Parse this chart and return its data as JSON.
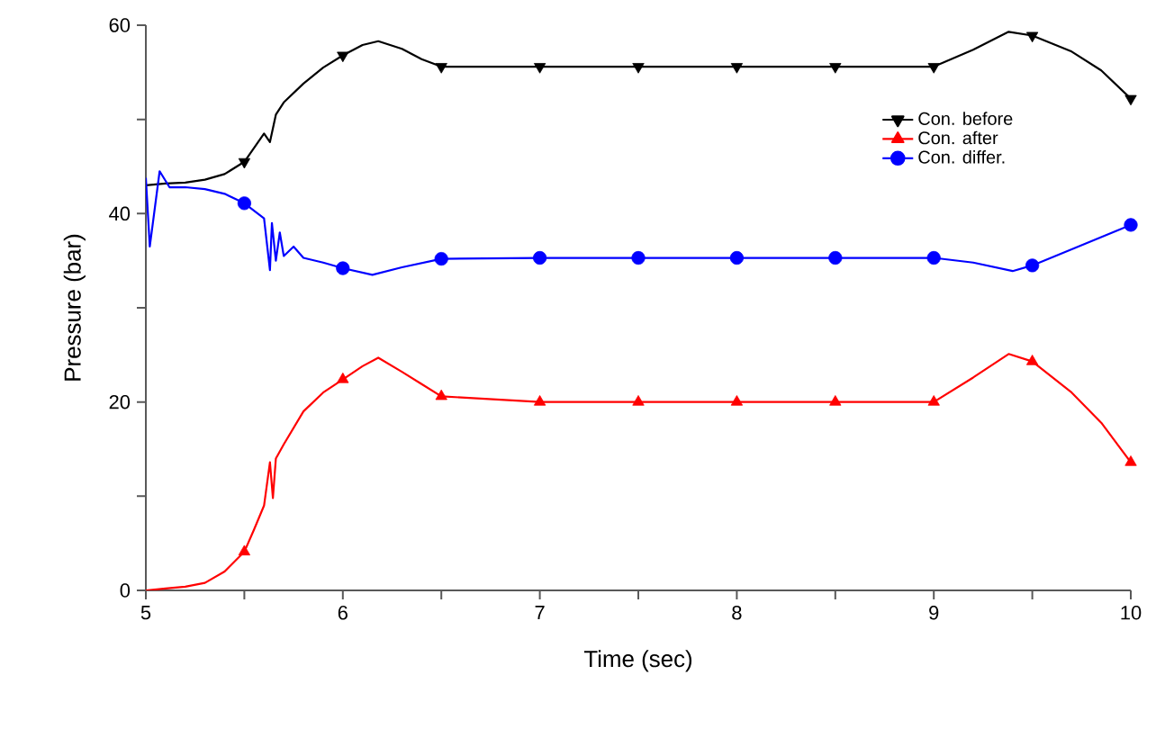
{
  "chart_data": {
    "type": "line",
    "xlabel": "Time (sec)",
    "ylabel": "Pressure (bar)",
    "xlim": [
      5,
      10
    ],
    "ylim": [
      0,
      60
    ],
    "xticks": [
      5,
      {
        "value": 5.5,
        "label": null
      },
      6,
      {
        "value": 6.5,
        "label": null
      },
      7,
      {
        "value": 7.5,
        "label": null
      },
      8,
      {
        "value": 8.5,
        "label": null
      },
      9,
      {
        "value": 9.5,
        "label": null
      },
      10
    ],
    "yticks": [
      0,
      {
        "value": 10,
        "label": null
      },
      20,
      {
        "value": 30,
        "label": null
      },
      40,
      {
        "value": 50,
        "label": null
      },
      60
    ],
    "grid": false,
    "legend": "top right",
    "series": [
      {
        "name": "Con. before",
        "color": "#000000",
        "x": [
          5,
          5.1,
          5.2,
          5.3,
          5.4,
          5.5,
          5.55,
          5.6,
          5.63,
          5.66,
          5.7,
          5.8,
          5.9,
          6.0,
          6.1,
          6.18,
          6.3,
          6.4,
          6.5,
          7,
          7.5,
          8,
          8.5,
          9,
          9.2,
          9.38,
          9.5,
          9.7,
          9.85,
          10
        ],
        "values": [
          43,
          43.2,
          43.3,
          43.6,
          44.2,
          45.5,
          47,
          48.5,
          47.6,
          50.5,
          51.8,
          53.8,
          55.5,
          56.8,
          57.9,
          58.3,
          57.5,
          56.4,
          55.6,
          55.6,
          55.6,
          55.6,
          55.6,
          55.6,
          57.4,
          59.3,
          58.9,
          57.2,
          55.2,
          52.2
        ]
      },
      {
        "name": "Con. after",
        "color": "#ff0000",
        "x": [
          5,
          5.1,
          5.2,
          5.3,
          5.4,
          5.5,
          5.55,
          5.6,
          5.63,
          5.645,
          5.66,
          5.7,
          5.8,
          5.9,
          6.0,
          6.1,
          6.18,
          6.3,
          6.4,
          6.5,
          7,
          7.5,
          8,
          8.5,
          9,
          9.2,
          9.38,
          9.5,
          9.7,
          9.85,
          10
        ],
        "values": [
          0,
          0.2,
          0.4,
          0.8,
          2,
          4.1,
          6.5,
          9,
          13.6,
          9.8,
          14,
          15.5,
          19,
          21,
          22.4,
          23.8,
          24.7,
          23.2,
          21.9,
          20.6,
          20,
          20,
          20,
          20,
          20,
          22.6,
          25.1,
          24.3,
          21,
          17.8,
          13.6
        ]
      },
      {
        "name": "Con. differ.",
        "color": "#0000ff",
        "x": [
          5,
          5.02,
          5.07,
          5.12,
          5.2,
          5.3,
          5.4,
          5.5,
          5.6,
          5.63,
          5.64,
          5.66,
          5.68,
          5.7,
          5.75,
          5.8,
          5.9,
          6.0,
          6.15,
          6.3,
          6.5,
          7,
          7.5,
          8,
          8.5,
          9,
          9.2,
          9.4,
          9.5,
          9.7,
          10
        ],
        "values": [
          43.8,
          36.5,
          44.5,
          42.8,
          42.8,
          42.6,
          42.1,
          41.1,
          39.5,
          34,
          39,
          35,
          38,
          35.5,
          36.5,
          35.3,
          34.8,
          34.2,
          33.5,
          34.3,
          35.2,
          35.3,
          35.3,
          35.3,
          35.3,
          35.3,
          34.8,
          33.9,
          34.5,
          36.2,
          38.8
        ]
      },
      {
        "type": "scatter",
        "color": "#000000",
        "marker": "triangle_down",
        "x": [
          5.5,
          6,
          6.5,
          7,
          7.5,
          8,
          8.5,
          9,
          9.5,
          10
        ],
        "values": [
          45.5,
          56.8,
          55.6,
          55.6,
          55.6,
          55.6,
          55.6,
          55.6,
          58.9,
          52.2
        ]
      },
      {
        "type": "scatter",
        "color": "#ff0000",
        "marker": "triangle",
        "x": [
          5.5,
          6,
          6.5,
          7,
          7.5,
          8,
          8.5,
          9,
          9.5,
          10
        ],
        "values": [
          4.1,
          22.4,
          20.6,
          20,
          20,
          20,
          20,
          20,
          24.3,
          13.6
        ]
      },
      {
        "type": "scatter",
        "color": "#0000ff",
        "marker": "circle",
        "x": [
          5.5,
          6,
          6.5,
          7,
          7.5,
          8,
          8.5,
          9,
          9.5,
          10
        ],
        "values": [
          41.1,
          34.2,
          35.2,
          35.3,
          35.3,
          35.3,
          35.3,
          35.3,
          34.5,
          38.8
        ]
      }
    ]
  }
}
